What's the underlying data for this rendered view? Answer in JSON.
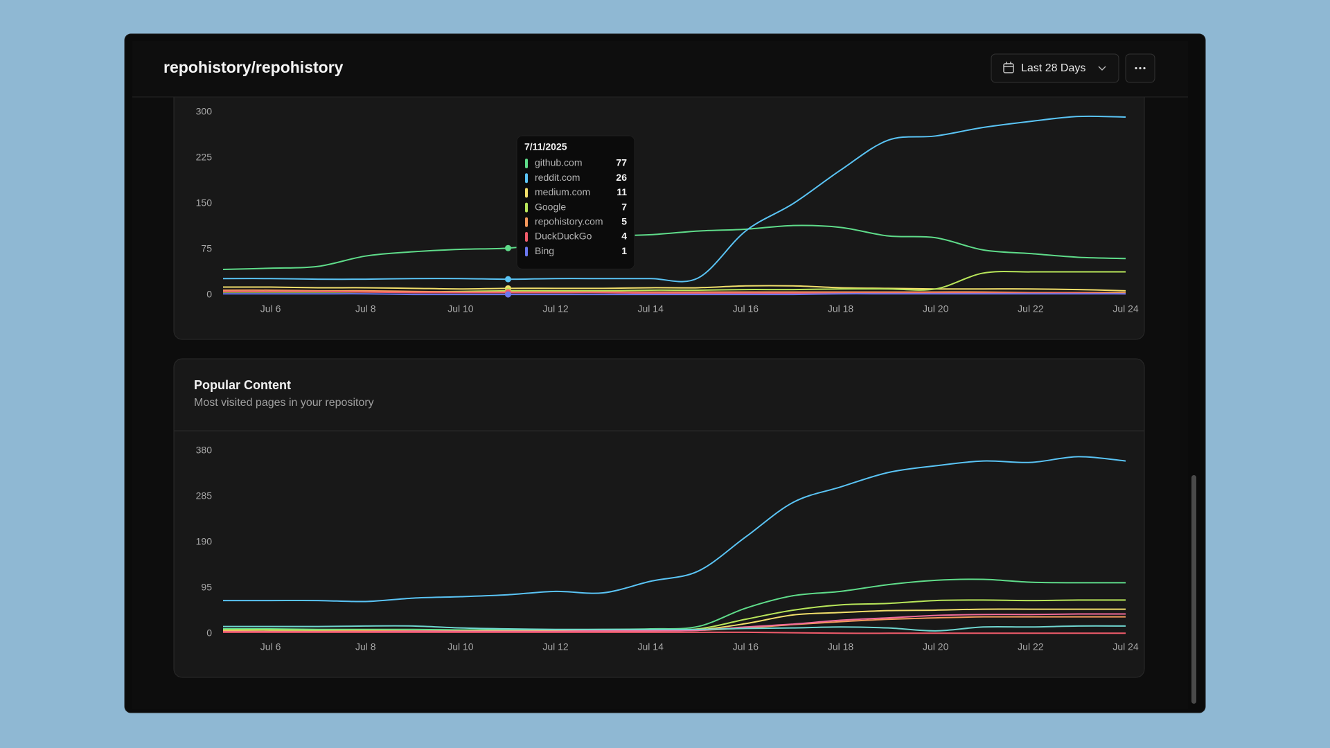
{
  "header": {
    "title": "repohistory/repohistory",
    "date_range": "Last 28 Days"
  },
  "chart_data": [
    {
      "type": "line",
      "x": [
        null,
        "Jul 6",
        null,
        "Jul 8",
        null,
        "Jul 10",
        null,
        "Jul 12",
        null,
        "Jul 14",
        null,
        "Jul 16",
        null,
        "Jul 18",
        null,
        "Jul 20",
        null,
        "Jul 22",
        null,
        "Jul 24"
      ],
      "ylim": [
        0,
        300
      ],
      "yticks": [
        0,
        75,
        150,
        225,
        300
      ],
      "series": [
        {
          "name": "github.com",
          "color": "#5fdc8a",
          "values": [
            42,
            44,
            47,
            64,
            71,
            75,
            77,
            85,
            96,
            99,
            105,
            108,
            114,
            111,
            97,
            94,
            74,
            68,
            62,
            60
          ]
        },
        {
          "name": "reddit.com",
          "color": "#5ac4f5",
          "values": [
            27,
            27,
            26,
            26,
            27,
            27,
            26,
            27,
            27,
            27,
            28,
            105,
            150,
            205,
            254,
            261,
            275,
            285,
            293,
            292
          ]
        },
        {
          "name": "medium.com",
          "color": "#f2df6b",
          "values": [
            13,
            13,
            12,
            12,
            11,
            10,
            11,
            11,
            11,
            12,
            12,
            15,
            15,
            12,
            11,
            10,
            10,
            10,
            9,
            7
          ]
        },
        {
          "name": "Google",
          "color": "#b8e65a",
          "values": [
            5,
            5,
            5,
            5,
            5,
            6,
            7,
            7,
            7,
            8,
            8,
            9,
            9,
            10,
            10,
            10,
            36,
            38,
            38,
            38
          ]
        },
        {
          "name": "repohistory.com",
          "color": "#f5995c",
          "values": [
            8,
            8,
            7,
            7,
            6,
            5,
            5,
            5,
            5,
            5,
            5,
            5,
            5,
            5,
            5,
            5,
            5,
            4,
            4,
            4
          ]
        },
        {
          "name": "DuckDuckGo",
          "color": "#ef5b6b",
          "values": [
            6,
            6,
            6,
            5,
            4,
            4,
            4,
            4,
            4,
            3,
            3,
            3,
            3,
            3,
            3,
            3,
            3,
            3,
            3,
            2
          ]
        },
        {
          "name": "Bing",
          "color": "#6b78f0",
          "values": [
            2,
            2,
            2,
            2,
            1,
            1,
            1,
            1,
            1,
            1,
            1,
            1,
            1,
            2,
            2,
            2,
            2,
            2,
            2,
            2
          ]
        }
      ],
      "tooltip": {
        "date": "7/11/2025"
      }
    },
    {
      "type": "line",
      "title": "Popular Content",
      "subtitle": "Most visited pages in your repository",
      "x": [
        null,
        "Jul 6",
        null,
        "Jul 8",
        null,
        "Jul 10",
        null,
        "Jul 12",
        null,
        "Jul 14",
        null,
        "Jul 16",
        null,
        "Jul 18",
        null,
        "Jul 20",
        null,
        "Jul 22",
        null,
        "Jul 24"
      ],
      "ylim": [
        0,
        380
      ],
      "yticks": [
        0,
        95,
        190,
        285,
        380
      ],
      "series": [
        {
          "color": "#5ac4f5",
          "values": [
            69,
            69,
            69,
            67,
            74,
            77,
            81,
            88,
            85,
            109,
            130,
            201,
            273,
            305,
            335,
            349,
            359,
            356,
            368,
            359
          ]
        },
        {
          "color": "#5fdc8a",
          "values": [
            10,
            10,
            9,
            9,
            9,
            8,
            8,
            8,
            9,
            10,
            15,
            53,
            79,
            88,
            102,
            111,
            113,
            107,
            106,
            106
          ]
        },
        {
          "color": "#b8e65a",
          "values": [
            8,
            8,
            7,
            7,
            6,
            6,
            6,
            6,
            7,
            8,
            10,
            30,
            49,
            60,
            63,
            69,
            70,
            69,
            70,
            70
          ]
        },
        {
          "color": "#f2df6b",
          "values": [
            6,
            5,
            4,
            4,
            5,
            6,
            6,
            6,
            6,
            7,
            8,
            21,
            39,
            44,
            48,
            49,
            51,
            51,
            51,
            51
          ]
        },
        {
          "color": "#f5995c",
          "values": [
            5,
            5,
            5,
            6,
            6,
            5,
            5,
            5,
            5,
            6,
            7,
            12,
            19,
            25,
            30,
            33,
            35,
            35,
            35,
            35
          ]
        },
        {
          "color": "#f06a9a",
          "values": [
            4,
            4,
            4,
            4,
            5,
            5,
            5,
            5,
            6,
            6,
            7,
            14,
            20,
            28,
            33,
            38,
            40,
            40,
            41,
            41
          ]
        },
        {
          "color": "#6fd6d0",
          "values": [
            15,
            15,
            15,
            16,
            16,
            12,
            10,
            9,
            9,
            9,
            9,
            11,
            12,
            14,
            12,
            6,
            14,
            14,
            16,
            16
          ]
        },
        {
          "color": "#ef5b6b",
          "values": [
            3,
            3,
            3,
            3,
            3,
            3,
            3,
            3,
            3,
            3,
            3,
            3,
            2,
            1,
            1,
            1,
            1,
            1,
            1,
            1
          ]
        }
      ]
    }
  ]
}
